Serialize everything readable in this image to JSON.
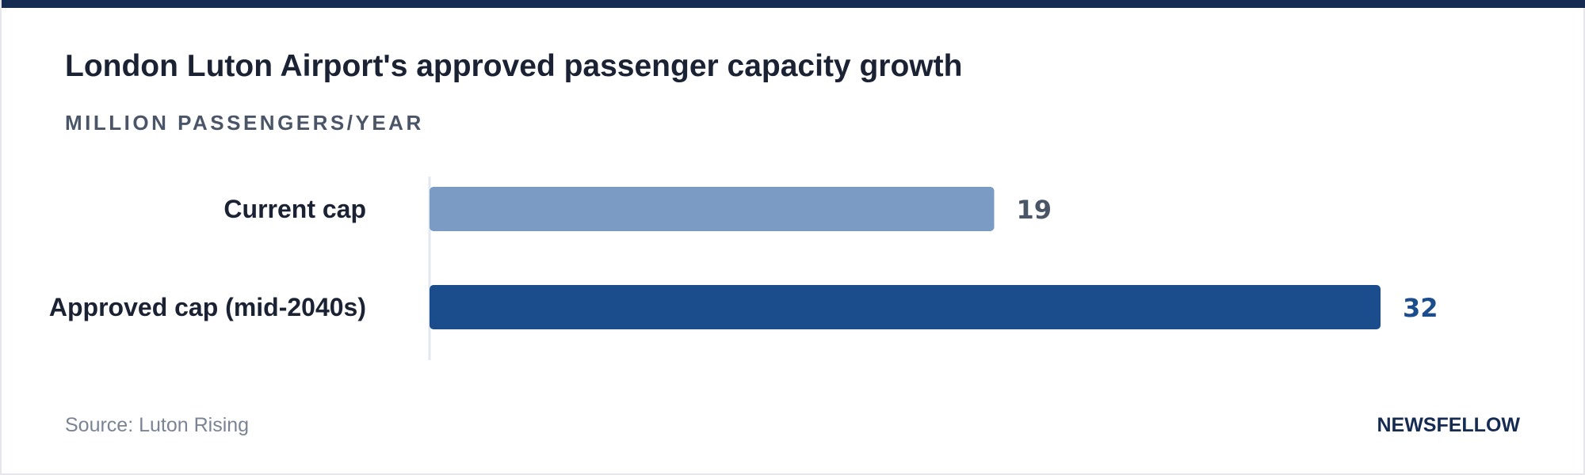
{
  "colors": {
    "top_bar": "#152b52",
    "current_bar": "#7b9bc4",
    "approved_bar": "#1b4c8c",
    "current_value_text": "#4a5568",
    "approved_value_text": "#1b4c8c",
    "axis_line": "#e3e8ef"
  },
  "chart_data": {
    "type": "bar",
    "orientation": "horizontal",
    "title": "London Luton Airport's approved passenger capacity growth",
    "subtitle": "MILLION PASSENGERS/YEAR",
    "categories": [
      "Current cap",
      "Approved cap (mid-2040s)"
    ],
    "values": [
      19,
      32
    ],
    "value_labels": [
      "19",
      "32"
    ],
    "xlim": [
      0,
      32
    ],
    "grid": false,
    "legend": "none"
  },
  "footer": {
    "source": "Source: Luton Rising",
    "brand": "NEWSFELLOW"
  }
}
